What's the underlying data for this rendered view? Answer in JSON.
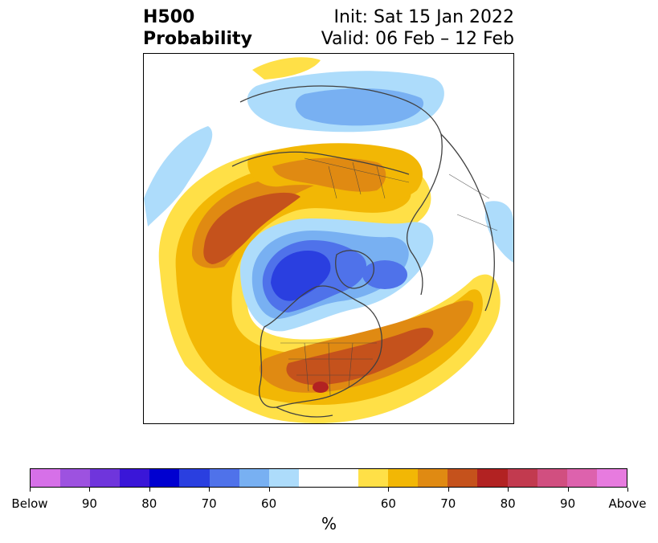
{
  "header": {
    "title_line1": "H500",
    "title_line2": "Probability",
    "init": "Init: Sat 15 Jan 2022",
    "valid": "Valid: 06 Feb – 12 Feb"
  },
  "map": {
    "projection": "north-polar-stereographic",
    "fields": [
      {
        "label": "above-normal",
        "color": "#c5521c"
      },
      {
        "label": "below-normal",
        "color": "#2a3fe0"
      }
    ]
  },
  "colorbar": {
    "colors": [
      "#d670e8",
      "#9d52e0",
      "#6f35dc",
      "#3a16d8",
      "#0000d0",
      "#2a3fe0",
      "#4f72ea",
      "#78b0f2",
      "#addcfb",
      "#ffffff",
      "#ffe047",
      "#f2b705",
      "#e08a12",
      "#c5521c",
      "#b22222",
      "#c23a4f",
      "#d14f80",
      "#dd62ad",
      "#e77bdf"
    ],
    "tick_labels": [
      "Below",
      "90",
      "80",
      "70",
      "60",
      "60",
      "70",
      "80",
      "90",
      "Above"
    ],
    "unit": "%"
  }
}
